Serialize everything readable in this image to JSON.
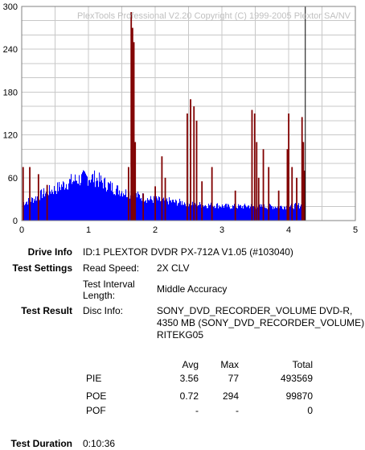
{
  "chart_data": {
    "type": "bar",
    "watermark": "PlexTools Professional V2.20 Copyright (C) 1999-2005 Plextor SA/NV",
    "x_ticks": [
      "0",
      "1",
      "2",
      "3",
      "4",
      "5"
    ],
    "y_ticks": [
      "0",
      "60",
      "120",
      "180",
      "240",
      "300"
    ],
    "xlim": [
      0,
      5
    ],
    "ylim": [
      0,
      300
    ],
    "grid": true,
    "end_marker_x": 4.25,
    "pie_envelope": {
      "x": [
        0.0,
        0.1,
        0.2,
        0.3,
        0.4,
        0.5,
        0.6,
        0.7,
        0.8,
        0.9,
        1.0,
        1.1,
        1.2,
        1.3,
        1.4,
        1.5,
        1.6,
        1.7,
        1.8,
        1.9,
        2.0,
        2.1,
        2.2,
        2.3,
        2.4,
        2.5,
        2.6,
        2.7,
        2.8,
        2.9,
        3.0,
        3.1,
        3.2,
        3.3,
        3.4,
        3.5,
        3.6,
        3.7,
        3.8,
        3.9,
        4.0,
        4.1,
        4.2,
        4.25
      ],
      "y": [
        25,
        28,
        32,
        38,
        42,
        45,
        50,
        55,
        58,
        60,
        62,
        60,
        55,
        50,
        45,
        42,
        38,
        36,
        34,
        30,
        30,
        28,
        28,
        26,
        26,
        25,
        24,
        22,
        22,
        22,
        21,
        20,
        20,
        20,
        21,
        20,
        20,
        20,
        20,
        20,
        20,
        21,
        22,
        23
      ]
    },
    "poe_spikes": [
      {
        "x": 0.02,
        "y": 75
      },
      {
        "x": 0.12,
        "y": 75
      },
      {
        "x": 0.25,
        "y": 65
      },
      {
        "x": 0.38,
        "y": 50
      },
      {
        "x": 1.6,
        "y": 75
      },
      {
        "x": 1.64,
        "y": 292
      },
      {
        "x": 1.66,
        "y": 270
      },
      {
        "x": 1.68,
        "y": 250
      },
      {
        "x": 1.7,
        "y": 110
      },
      {
        "x": 1.82,
        "y": 38
      },
      {
        "x": 2.0,
        "y": 48
      },
      {
        "x": 2.1,
        "y": 90
      },
      {
        "x": 2.15,
        "y": 60
      },
      {
        "x": 2.48,
        "y": 150
      },
      {
        "x": 2.53,
        "y": 170
      },
      {
        "x": 2.58,
        "y": 160
      },
      {
        "x": 2.62,
        "y": 140
      },
      {
        "x": 2.7,
        "y": 55
      },
      {
        "x": 2.85,
        "y": 75
      },
      {
        "x": 3.2,
        "y": 42
      },
      {
        "x": 3.45,
        "y": 155
      },
      {
        "x": 3.49,
        "y": 150
      },
      {
        "x": 3.52,
        "y": 110
      },
      {
        "x": 3.55,
        "y": 60
      },
      {
        "x": 3.62,
        "y": 100
      },
      {
        "x": 3.7,
        "y": 75
      },
      {
        "x": 3.85,
        "y": 42
      },
      {
        "x": 3.98,
        "y": 100
      },
      {
        "x": 4.0,
        "y": 150
      },
      {
        "x": 4.05,
        "y": 75
      },
      {
        "x": 4.12,
        "y": 60
      },
      {
        "x": 4.2,
        "y": 145
      },
      {
        "x": 4.22,
        "y": 110
      },
      {
        "x": 4.24,
        "y": 70
      }
    ],
    "pie_color": "#0000ff",
    "poe_color": "#800000"
  },
  "drive_info": {
    "label": "Drive Info",
    "value": "ID:1 PLEXTOR DVDR PX-712A V1.05 (#103040)"
  },
  "test_settings": {
    "label": "Test Settings",
    "read_speed_label": "Read Speed:",
    "read_speed_value": "2X CLV",
    "interval_label_1": "Test Interval",
    "interval_label_2": "Length:",
    "interval_value": "Middle Accuracy"
  },
  "test_result": {
    "label": "Test Result",
    "disc_info_label": "Disc Info:",
    "disc_info_line1": "SONY_DVD_RECORDER_VOLUME DVD-R,",
    "disc_info_line2": "4350 MB (SONY_DVD_RECORDER_VOLUME)",
    "disc_info_line3": "RITEKG05"
  },
  "stats": {
    "headers": {
      "avg": "Avg",
      "max": "Max",
      "total": "Total"
    },
    "rows": [
      {
        "name": "PIE",
        "avg": "3.56",
        "max": "77",
        "total": "493569"
      },
      {
        "name": "POE",
        "avg": "0.72",
        "max": "294",
        "total": "99870"
      },
      {
        "name": "POF",
        "avg": "-",
        "max": "-",
        "total": "0"
      }
    ]
  },
  "test_duration": {
    "label": "Test Duration",
    "value": "0:10:36"
  }
}
